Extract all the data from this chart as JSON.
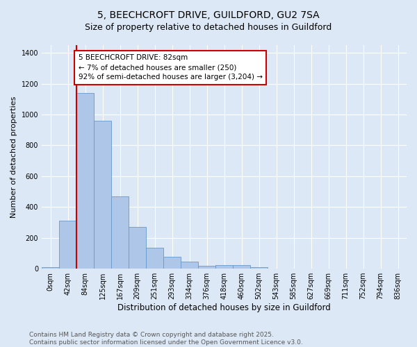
{
  "title": "5, BEECHCROFT DRIVE, GUILDFORD, GU2 7SA",
  "subtitle": "Size of property relative to detached houses in Guildford",
  "xlabel": "Distribution of detached houses by size in Guildford",
  "ylabel": "Number of detached properties",
  "categories": [
    "0sqm",
    "42sqm",
    "84sqm",
    "125sqm",
    "167sqm",
    "209sqm",
    "251sqm",
    "293sqm",
    "334sqm",
    "376sqm",
    "418sqm",
    "460sqm",
    "502sqm",
    "543sqm",
    "585sqm",
    "627sqm",
    "669sqm",
    "711sqm",
    "752sqm",
    "794sqm",
    "836sqm"
  ],
  "values": [
    10,
    310,
    1140,
    960,
    470,
    270,
    135,
    75,
    45,
    20,
    25,
    25,
    10,
    0,
    0,
    0,
    0,
    0,
    0,
    0,
    0
  ],
  "bar_color": "#aec6e8",
  "bar_edge_color": "#6699cc",
  "vline_color": "#cc0000",
  "annotation_text": "5 BEECHCROFT DRIVE: 82sqm\n← 7% of detached houses are smaller (250)\n92% of semi-detached houses are larger (3,204) →",
  "annotation_box_color": "#ffffff",
  "annotation_box_edge_color": "#cc0000",
  "footer_line1": "Contains HM Land Registry data © Crown copyright and database right 2025.",
  "footer_line2": "Contains public sector information licensed under the Open Government Licence v3.0.",
  "background_color": "#dce8f5",
  "plot_bg_color": "#dce8f5",
  "ylim": [
    0,
    1450
  ],
  "yticks": [
    0,
    200,
    400,
    600,
    800,
    1000,
    1200,
    1400
  ],
  "title_fontsize": 10,
  "subtitle_fontsize": 9,
  "xlabel_fontsize": 8.5,
  "ylabel_fontsize": 8,
  "tick_fontsize": 7,
  "annotation_fontsize": 7.5,
  "footer_fontsize": 6.5
}
